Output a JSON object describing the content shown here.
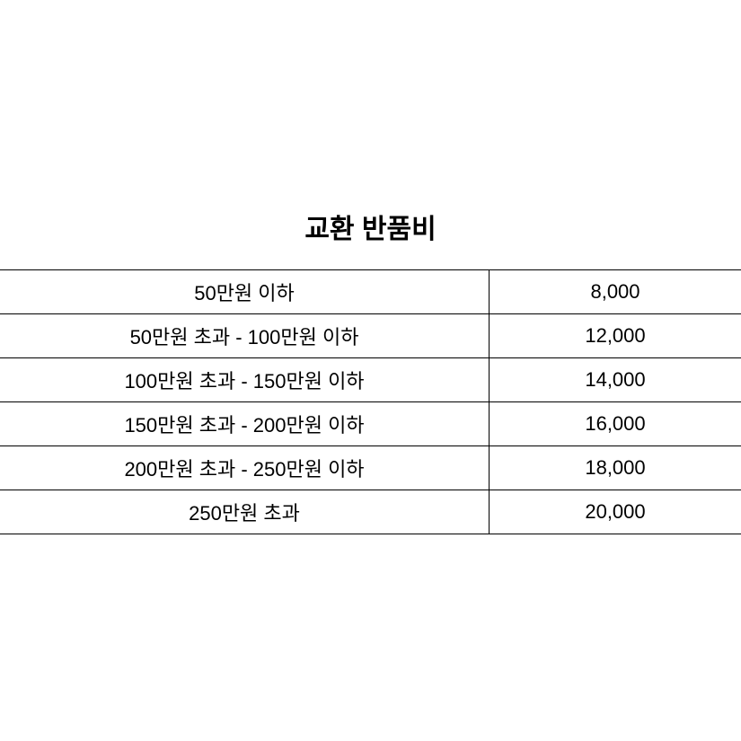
{
  "table": {
    "title": "교환 반품비",
    "title_fontsize": 30,
    "title_fontweight": "bold",
    "text_fontsize": 22,
    "border_color": "#000000",
    "background_color": "#ffffff",
    "text_color": "#000000",
    "columns": [
      "range",
      "fee"
    ],
    "column_widths": [
      "66%",
      "34%"
    ],
    "rows": [
      {
        "range": "50만원 이하",
        "fee": "8,000"
      },
      {
        "range": "50만원 초과 - 100만원 이하",
        "fee": "12,000"
      },
      {
        "range": "100만원 초과 - 150만원 이하",
        "fee": "14,000"
      },
      {
        "range": "150만원 초과 - 200만원 이하",
        "fee": "16,000"
      },
      {
        "range": "200만원 초과 - 250만원 이하",
        "fee": "18,000"
      },
      {
        "range": "250만원 초과",
        "fee": "20,000"
      }
    ]
  }
}
